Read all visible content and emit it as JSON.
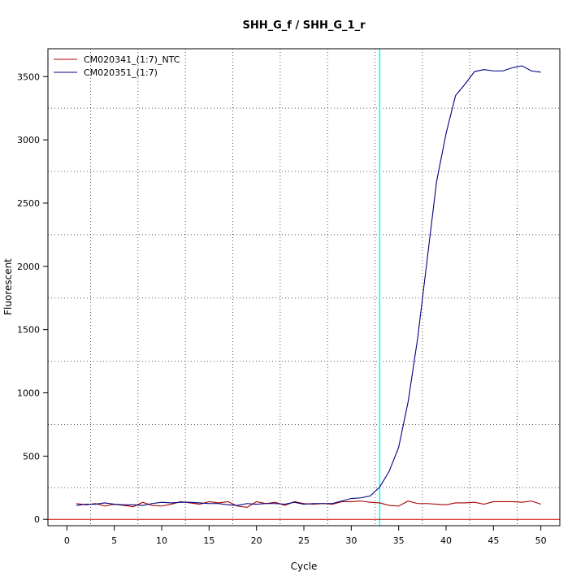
{
  "chart_data": {
    "type": "line",
    "title": "SHH_G_f / SHH_G_1_r",
    "xlabel": "Cycle",
    "ylabel": "Fluorescent",
    "xlim": [
      -2,
      52
    ],
    "ylim": [
      -50,
      3720
    ],
    "x_ticks": [
      0,
      5,
      10,
      15,
      20,
      25,
      30,
      35,
      40,
      45,
      50
    ],
    "y_ticks": [
      0,
      500,
      1000,
      1500,
      2000,
      2500,
      3000,
      3500
    ],
    "grid": true,
    "legend_position": "top-left",
    "threshold_line": {
      "axis": "x",
      "value": 33,
      "color": "#00ffff"
    },
    "baseline": {
      "axis": "y",
      "value": 0,
      "color": "#cc0000"
    },
    "x": [
      1,
      2,
      3,
      4,
      5,
      6,
      7,
      8,
      9,
      10,
      11,
      12,
      13,
      14,
      15,
      16,
      17,
      18,
      19,
      20,
      21,
      22,
      23,
      24,
      25,
      26,
      27,
      28,
      29,
      30,
      31,
      32,
      33,
      34,
      35,
      36,
      37,
      38,
      39,
      40,
      41,
      42,
      43,
      44,
      45,
      46,
      47,
      48,
      49,
      50
    ],
    "series": [
      {
        "name": "CM020341_(1:7)_NTC",
        "color": "#aa0000",
        "values": [
          125,
          115,
          125,
          105,
          120,
          110,
          100,
          135,
          110,
          105,
          120,
          140,
          130,
          120,
          140,
          130,
          140,
          105,
          95,
          140,
          125,
          135,
          110,
          140,
          125,
          120,
          125,
          120,
          140,
          140,
          145,
          135,
          130,
          110,
          105,
          145,
          125,
          125,
          120,
          115,
          130,
          130,
          135,
          120,
          140,
          140,
          140,
          135,
          145,
          120
        ]
      },
      {
        "name": "CM020351_(1:7)",
        "color": "#000080",
        "values": [
          110,
          120,
          120,
          130,
          120,
          115,
          115,
          110,
          125,
          135,
          130,
          135,
          135,
          130,
          125,
          125,
          115,
          110,
          125,
          120,
          125,
          125,
          120,
          135,
          120,
          125,
          125,
          125,
          145,
          165,
          170,
          185,
          255,
          380,
          570,
          930,
          1430,
          2050,
          2670,
          3050,
          3350,
          3440,
          3540,
          3555,
          3545,
          3545,
          3570,
          3585,
          3545,
          3535
        ]
      }
    ]
  }
}
